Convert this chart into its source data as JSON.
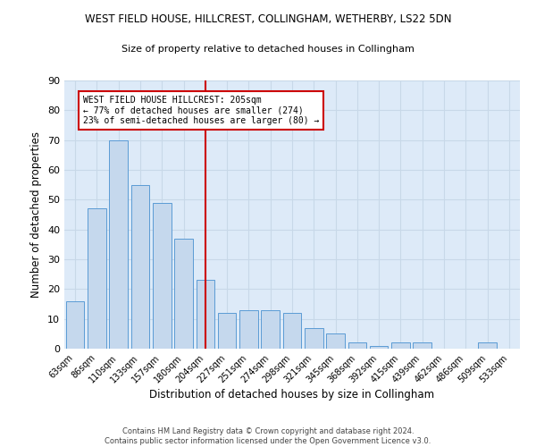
{
  "title": "WEST FIELD HOUSE, HILLCREST, COLLINGHAM, WETHERBY, LS22 5DN",
  "subtitle": "Size of property relative to detached houses in Collingham",
  "xlabel": "Distribution of detached houses by size in Collingham",
  "ylabel": "Number of detached properties",
  "footer_line1": "Contains HM Land Registry data © Crown copyright and database right 2024.",
  "footer_line2": "Contains public sector information licensed under the Open Government Licence v3.0.",
  "categories": [
    "63sqm",
    "86sqm",
    "110sqm",
    "133sqm",
    "157sqm",
    "180sqm",
    "204sqm",
    "227sqm",
    "251sqm",
    "274sqm",
    "298sqm",
    "321sqm",
    "345sqm",
    "368sqm",
    "392sqm",
    "415sqm",
    "439sqm",
    "462sqm",
    "486sqm",
    "509sqm",
    "533sqm"
  ],
  "values": [
    16,
    47,
    70,
    55,
    49,
    37,
    23,
    12,
    13,
    13,
    12,
    7,
    5,
    2,
    1,
    2,
    2,
    0,
    0,
    2,
    0
  ],
  "bar_color": "#c5d8ed",
  "bar_edge_color": "#5b9bd5",
  "grid_color": "#c8d8e8",
  "background_color": "#ddeaf8",
  "vline_x_index": 6,
  "vline_color": "#cc0000",
  "annotation_text": "WEST FIELD HOUSE HILLCREST: 205sqm\n← 77% of detached houses are smaller (274)\n23% of semi-detached houses are larger (80) →",
  "annotation_box_color": "#cc0000",
  "ylim": [
    0,
    90
  ],
  "yticks": [
    0,
    10,
    20,
    30,
    40,
    50,
    60,
    70,
    80,
    90
  ]
}
